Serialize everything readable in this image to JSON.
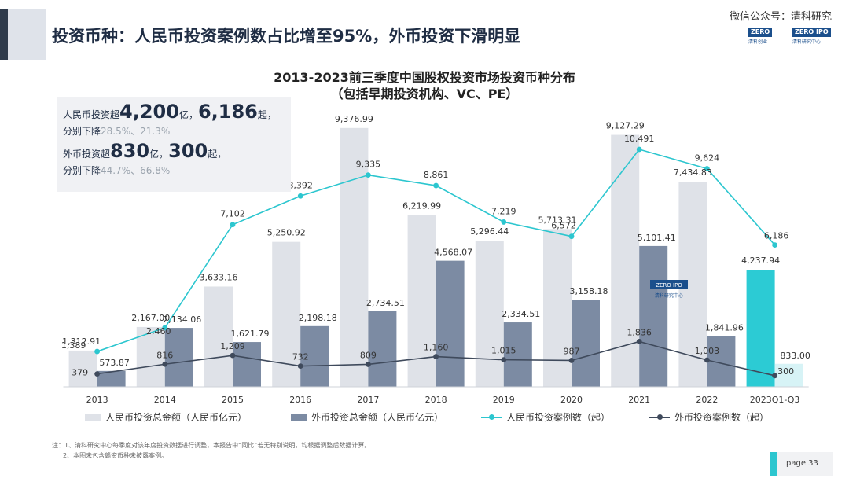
{
  "header": {
    "title": "投资币种：人民币投资案例数占比增至95%，外币投资下滑明显",
    "wechat": "微信公众号：清科研究"
  },
  "logos": {
    "zero_left": "ZERO",
    "zero_sub_left": "清科创业",
    "zero_right": "ZERO IPO",
    "zero_sub_right": "清科研究中心"
  },
  "kpi": {
    "rmb_prefix": "人民币投资超",
    "rmb_amount": "4,200",
    "rmb_amount_unit": "亿，",
    "rmb_cases": "6,186",
    "rmb_cases_unit": "起，",
    "rmb_drop_label": "分别下降",
    "rmb_drop_values": "28.5%、21.3%",
    "fx_prefix": "外币投资超",
    "fx_amount": "830",
    "fx_amount_unit": "亿，",
    "fx_cases": "300",
    "fx_cases_unit": "起，",
    "fx_drop_label": "分别下降",
    "fx_drop_values": "44.7%、66.8%"
  },
  "colors": {
    "rmb_bar": "#dfe2e8",
    "rmb_bar_last": "#2ccbd4",
    "fx_bar": "#7c8ba3",
    "fx_bar_last": "#d7f3f6",
    "rmb_line": "#2cc6cf",
    "fx_line": "#3f4a5c"
  },
  "chart_data": {
    "type": "bar",
    "title": "2013-2023前三季度中国股权投资市场投资币种分布",
    "subtitle": "（包括早期投资机构、VC、PE）",
    "categories": [
      "2013",
      "2014",
      "2015",
      "2016",
      "2017",
      "2018",
      "2019",
      "2020",
      "2021",
      "2022",
      "2023Q1-Q3"
    ],
    "series": [
      {
        "name": "人民币投资总金额（人民币亿元）",
        "kind": "bar",
        "values": [
          1312.91,
          2167.0,
          3633.16,
          5250.92,
          9376.99,
          6219.99,
          5296.44,
          5713.31,
          9127.29,
          7434.83,
          4237.94
        ],
        "labels": [
          "1,312.91",
          "2,167.00",
          "3,633.16",
          "5,250.92",
          "9,376.99",
          "6,219.99",
          "5,296.44",
          "5,713.31",
          "9,127.29",
          "7,434.83",
          "4,237.94"
        ]
      },
      {
        "name": "外币投资总金额（人民币亿元）",
        "kind": "bar",
        "values": [
          573.87,
          2134.06,
          1621.79,
          2198.18,
          2734.51,
          4568.07,
          2334.51,
          3158.18,
          5101.41,
          1841.96,
          833.0
        ],
        "labels": [
          "573.87",
          "2,134.06",
          "1,621.79",
          "2,198.18",
          "2,734.51",
          "4,568.07",
          "2,334.51",
          "3,158.18",
          "5,101.41",
          "1,841.96",
          "833.00"
        ]
      },
      {
        "name": "人民币投资案例数（起）",
        "kind": "line",
        "values": [
          1389,
          2460,
          7102,
          8392,
          9335,
          8861,
          7219,
          6572,
          10491,
          9624,
          6186
        ],
        "labels": [
          "1,389",
          "2,460",
          "7,102",
          "8,392",
          "9,335",
          "8,861",
          "7,219",
          "6,572",
          "10,491",
          "9,624",
          "6,186"
        ]
      },
      {
        "name": "外币投资案例数（起）",
        "kind": "line",
        "values": [
          379,
          816,
          1209,
          732,
          809,
          1160,
          1015,
          987,
          1836,
          1003,
          300
        ],
        "labels": [
          "379",
          "816",
          "1,209",
          "732",
          "809",
          "1,160",
          "1,015",
          "987",
          "1,836",
          "1,003",
          "300"
        ]
      }
    ],
    "grid": false,
    "legend_position": "bottom"
  },
  "notes": [
    "注：1、清科研究中心每季度对该年度投资数据进行调整，本报告中“同比”若无特别说明，均根据调整后数据计算。",
    "2、本图未包含赣资币种未披露案例。"
  ],
  "page": {
    "label": "page  33"
  }
}
